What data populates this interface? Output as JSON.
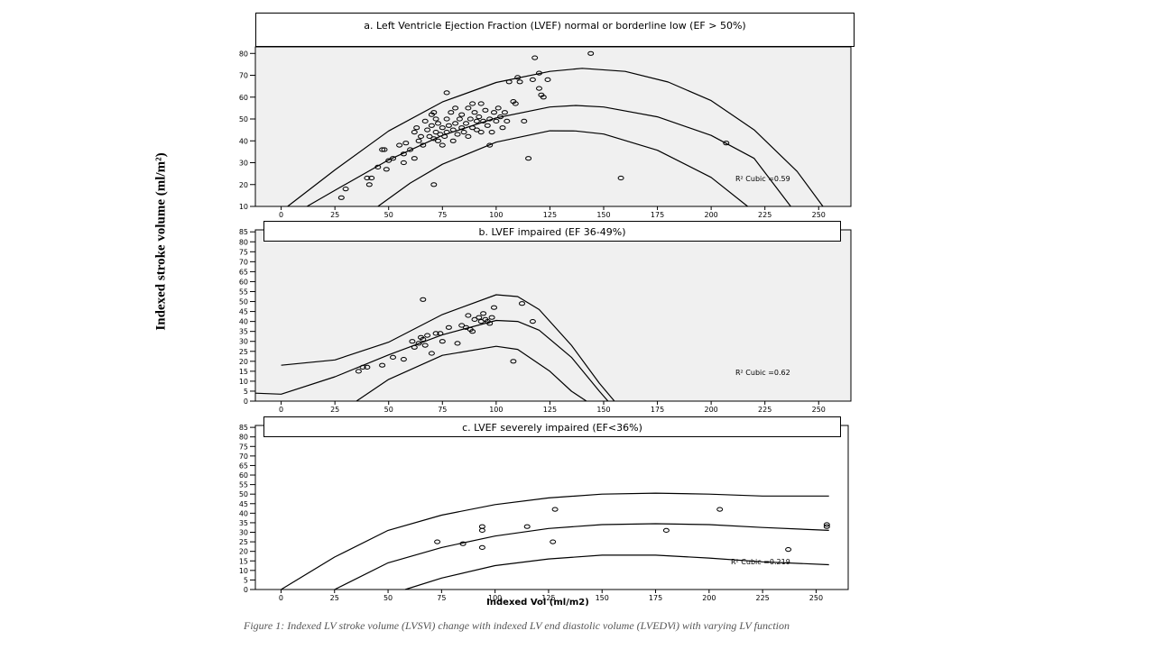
{
  "figure": {
    "ylabel": "Indexed stroke volume (ml/m²)",
    "xlabel": "Indexed Vol (ml/m2)",
    "caption": "Figure 1: Indexed LV stroke volume (LVSVi) change with indexed LV end diastolic volume (LVEDVi) with varying LV function"
  },
  "chart_data": [
    {
      "type": "scatter",
      "title": "a. Left Ventricle Ejection Fraction (LVEF) normal or borderline low (EF > 50%)",
      "annotation": "R² Cubic =0.59",
      "xlim": [
        -12,
        265
      ],
      "ylim": [
        10,
        83
      ],
      "xticks": [
        0,
        25,
        50,
        75,
        100,
        125,
        150,
        175,
        200,
        225,
        250
      ],
      "yticks": [
        10,
        20,
        30,
        40,
        50,
        60,
        70,
        80
      ],
      "grid": false,
      "points": [
        [
          28,
          14
        ],
        [
          30,
          18
        ],
        [
          40,
          23
        ],
        [
          41,
          20
        ],
        [
          42,
          23
        ],
        [
          45,
          28
        ],
        [
          47,
          36
        ],
        [
          48,
          36
        ],
        [
          50,
          31
        ],
        [
          49,
          27
        ],
        [
          52,
          32
        ],
        [
          55,
          38
        ],
        [
          57,
          34
        ],
        [
          57,
          30
        ],
        [
          58,
          39
        ],
        [
          60,
          36
        ],
        [
          62,
          32
        ],
        [
          62,
          44
        ],
        [
          63,
          46
        ],
        [
          64,
          40
        ],
        [
          65,
          42
        ],
        [
          66,
          38
        ],
        [
          67,
          49
        ],
        [
          68,
          45
        ],
        [
          69,
          42
        ],
        [
          70,
          52
        ],
        [
          70,
          47
        ],
        [
          71,
          41
        ],
        [
          71,
          53
        ],
        [
          72,
          44
        ],
        [
          72,
          50
        ],
        [
          73,
          40
        ],
        [
          73,
          48
        ],
        [
          74,
          43
        ],
        [
          75,
          46
        ],
        [
          75,
          38
        ],
        [
          76,
          42
        ],
        [
          77,
          44
        ],
        [
          77,
          50
        ],
        [
          78,
          47
        ],
        [
          79,
          53
        ],
        [
          80,
          40
        ],
        [
          80,
          45
        ],
        [
          81,
          48
        ],
        [
          81,
          55
        ],
        [
          82,
          43
        ],
        [
          83,
          50
        ],
        [
          84,
          46
        ],
        [
          84,
          52
        ],
        [
          85,
          44
        ],
        [
          86,
          48
        ],
        [
          87,
          55
        ],
        [
          87,
          42
        ],
        [
          88,
          50
        ],
        [
          89,
          46
        ],
        [
          89,
          57
        ],
        [
          90,
          53
        ],
        [
          91,
          45
        ],
        [
          91,
          49
        ],
        [
          92,
          51
        ],
        [
          93,
          44
        ],
        [
          93,
          57
        ],
        [
          94,
          49
        ],
        [
          95,
          54
        ],
        [
          96,
          47
        ],
        [
          97,
          50
        ],
        [
          97,
          38
        ],
        [
          98,
          44
        ],
        [
          99,
          53
        ],
        [
          100,
          49
        ],
        [
          101,
          55
        ],
        [
          102,
          51
        ],
        [
          103,
          46
        ],
        [
          104,
          53
        ],
        [
          105,
          49
        ],
        [
          106,
          67
        ],
        [
          108,
          58
        ],
        [
          109,
          57
        ],
        [
          110,
          69
        ],
        [
          111,
          67
        ],
        [
          113,
          49
        ],
        [
          115,
          32
        ],
        [
          117,
          68
        ],
        [
          118,
          78
        ],
        [
          120,
          64
        ],
        [
          120,
          71
        ],
        [
          121,
          61
        ],
        [
          122,
          60
        ],
        [
          124,
          68
        ],
        [
          77,
          62
        ],
        [
          71,
          20
        ],
        [
          144,
          80
        ],
        [
          158,
          23
        ],
        [
          207,
          39
        ]
      ],
      "curves": [
        [
          [
            3,
            10
          ],
          [
            25,
            26.7
          ],
          [
            50,
            44.5
          ],
          [
            75,
            57.8
          ],
          [
            100,
            66.7
          ],
          [
            125,
            71.8
          ],
          [
            140,
            73.2
          ],
          [
            160,
            71.8
          ],
          [
            180,
            66.9
          ],
          [
            200,
            58.4
          ],
          [
            220,
            45
          ],
          [
            240,
            26
          ],
          [
            252,
            10
          ]
        ],
        [
          [
            12,
            10
          ],
          [
            25,
            17.4
          ],
          [
            50,
            31.3
          ],
          [
            75,
            42.5
          ],
          [
            100,
            50.5
          ],
          [
            125,
            55.5
          ],
          [
            137,
            56.2
          ],
          [
            150,
            55.5
          ],
          [
            175,
            51
          ],
          [
            200,
            42.5
          ],
          [
            220,
            32
          ],
          [
            237,
            10
          ]
        ],
        [
          [
            45,
            10
          ],
          [
            60,
            20.7
          ],
          [
            75,
            29.3
          ],
          [
            100,
            39.4
          ],
          [
            125,
            44.6
          ],
          [
            137,
            44.5
          ],
          [
            150,
            43.1
          ],
          [
            175,
            35.7
          ],
          [
            200,
            23.3
          ],
          [
            217,
            10
          ]
        ]
      ]
    },
    {
      "type": "scatter",
      "title": "b. LVEF impaired (EF 36-49%)",
      "annotation": "R² Cubic =0.62",
      "xlim": [
        -12,
        265
      ],
      "ylim": [
        0,
        86
      ],
      "xticks": [
        0,
        25,
        50,
        75,
        100,
        125,
        150,
        175,
        200,
        225,
        250
      ],
      "yticks": [
        0,
        5,
        10,
        15,
        20,
        25,
        30,
        35,
        40,
        45,
        50,
        55,
        60,
        65,
        70,
        75,
        80,
        85
      ],
      "grid": false,
      "points": [
        [
          36,
          15
        ],
        [
          38,
          17
        ],
        [
          40,
          17
        ],
        [
          47,
          18
        ],
        [
          52,
          22
        ],
        [
          57,
          21
        ],
        [
          61,
          30
        ],
        [
          62,
          27
        ],
        [
          64,
          29
        ],
        [
          65,
          32
        ],
        [
          66,
          31
        ],
        [
          67,
          28
        ],
        [
          68,
          33
        ],
        [
          70,
          24
        ],
        [
          72,
          34
        ],
        [
          74,
          34
        ],
        [
          75,
          30
        ],
        [
          78,
          37
        ],
        [
          82,
          29
        ],
        [
          84,
          38
        ],
        [
          86,
          37
        ],
        [
          87,
          43
        ],
        [
          88,
          36
        ],
        [
          89,
          35
        ],
        [
          90,
          41
        ],
        [
          92,
          42
        ],
        [
          93,
          40
        ],
        [
          94,
          44
        ],
        [
          95,
          41
        ],
        [
          96,
          40
        ],
        [
          97,
          39
        ],
        [
          98,
          42
        ],
        [
          99,
          47
        ],
        [
          108,
          20
        ],
        [
          112,
          49
        ],
        [
          117,
          40
        ],
        [
          66,
          51
        ]
      ],
      "curves": [
        [
          [
            0,
            18
          ],
          [
            25,
            20.7
          ],
          [
            50,
            29.6
          ],
          [
            75,
            43.5
          ],
          [
            100,
            53.4
          ],
          [
            110,
            52.5
          ],
          [
            120,
            46
          ],
          [
            135,
            28
          ],
          [
            148,
            9
          ],
          [
            155,
            0
          ]
        ],
        [
          [
            -12,
            4
          ],
          [
            0,
            3.5
          ],
          [
            25,
            12.2
          ],
          [
            50,
            23.2
          ],
          [
            75,
            33.3
          ],
          [
            100,
            40.5
          ],
          [
            110,
            40
          ],
          [
            120,
            35.6
          ],
          [
            135,
            22
          ],
          [
            148,
            5
          ],
          [
            152,
            0
          ]
        ],
        [
          [
            35,
            0
          ],
          [
            50,
            10.9
          ],
          [
            75,
            23
          ],
          [
            100,
            27.5
          ],
          [
            110,
            26
          ],
          [
            125,
            15
          ],
          [
            135,
            5
          ],
          [
            142,
            0
          ]
        ]
      ]
    },
    {
      "type": "scatter",
      "title": "c. LVEF severely impaired (EF<36%)",
      "annotation": "R² Cubic =0.219",
      "xlim": [
        -12,
        265
      ],
      "ylim": [
        0,
        86
      ],
      "xticks": [
        0,
        25,
        50,
        75,
        100,
        125,
        150,
        175,
        200,
        225,
        250
      ],
      "yticks": [
        0,
        5,
        10,
        15,
        20,
        25,
        30,
        35,
        40,
        45,
        50,
        55,
        60,
        65,
        70,
        75,
        80,
        85
      ],
      "grid": false,
      "points": [
        [
          73,
          25
        ],
        [
          85,
          24
        ],
        [
          94,
          22
        ],
        [
          94,
          31
        ],
        [
          94,
          33
        ],
        [
          115,
          33
        ],
        [
          127,
          25
        ],
        [
          128,
          42
        ],
        [
          180,
          31
        ],
        [
          205,
          42
        ],
        [
          237,
          21
        ],
        [
          255,
          33
        ],
        [
          255,
          34
        ]
      ],
      "curves": [
        [
          [
            0,
            0
          ],
          [
            25,
            17
          ],
          [
            50,
            31
          ],
          [
            75,
            39
          ],
          [
            100,
            44.5
          ],
          [
            125,
            48
          ],
          [
            150,
            50
          ],
          [
            175,
            50.5
          ],
          [
            200,
            50
          ],
          [
            225,
            49
          ],
          [
            256,
            49
          ]
        ],
        [
          [
            25,
            0
          ],
          [
            50,
            14
          ],
          [
            75,
            22
          ],
          [
            100,
            28
          ],
          [
            125,
            32
          ],
          [
            150,
            34
          ],
          [
            175,
            34.5
          ],
          [
            200,
            34
          ],
          [
            225,
            32.5
          ],
          [
            256,
            31
          ]
        ],
        [
          [
            58,
            0
          ],
          [
            75,
            6
          ],
          [
            100,
            12.5
          ],
          [
            125,
            16
          ],
          [
            150,
            18
          ],
          [
            175,
            18
          ],
          [
            200,
            16.5
          ],
          [
            225,
            14.5
          ],
          [
            256,
            13
          ]
        ]
      ]
    }
  ]
}
